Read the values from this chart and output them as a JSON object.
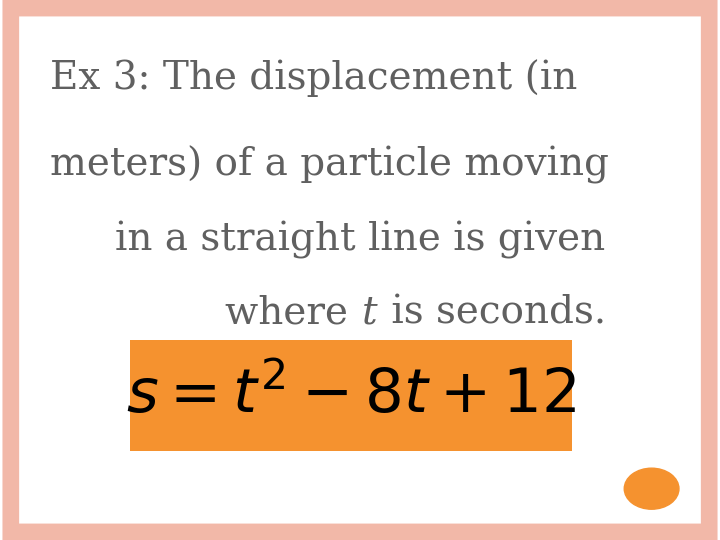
{
  "background_color": "#ffffff",
  "border_color": "#f2b8a8",
  "main_text_color": "#606060",
  "formula_box_color": "#f5922f",
  "formula_text_color": "#000000",
  "dot_color": "#f5922f",
  "line1": "Ex 3: The displacement (in",
  "line2": "meters) of a particle moving",
  "line3": "in a straight line is given",
  "line4": "where",
  "line4_italic": "t",
  "line4_rest": " is seconds.",
  "formula": "$s = t^{2} - 8t + 12$",
  "text_fontsize": 28,
  "formula_fontsize": 44,
  "border_linewidth": 12
}
